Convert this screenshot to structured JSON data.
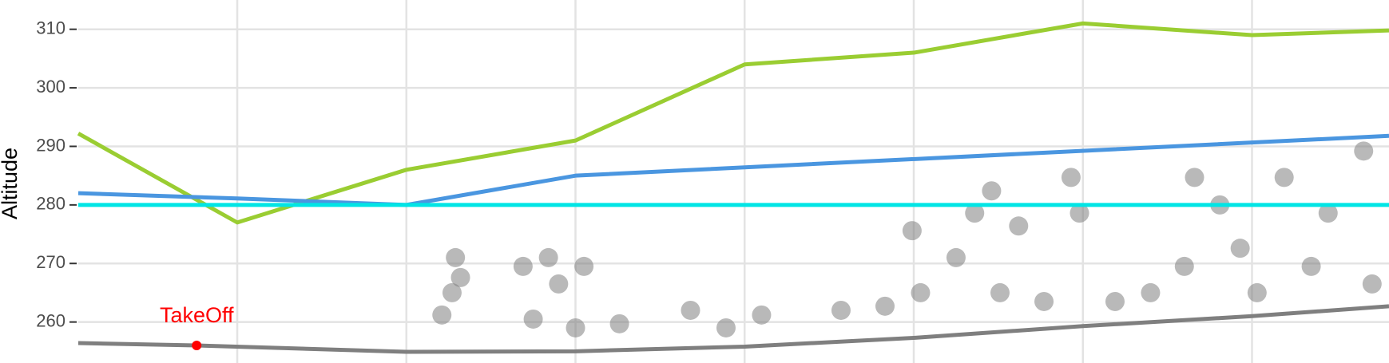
{
  "chart_data": {
    "type": "line",
    "y_label": "Altitude",
    "xlim": [
      0.06,
      7.81
    ],
    "xticks": [
      1,
      2,
      3,
      4,
      5,
      6,
      7
    ],
    "ylim": [
      253,
      315
    ],
    "yticks": [
      260,
      270,
      280,
      290,
      300,
      310
    ],
    "grid": true,
    "series": [
      {
        "color": "#9acd32",
        "x": [
          0.06,
          1,
          2,
          3,
          4,
          5,
          6,
          7,
          7.81
        ],
        "values": [
          292.2,
          277,
          286,
          291,
          304,
          306,
          311,
          309,
          309.8
        ]
      },
      {
        "color": "#4a96e0",
        "x": [
          0.06,
          1,
          2,
          3,
          7.81
        ],
        "values": [
          282,
          281.1,
          280,
          285,
          291.8
        ]
      },
      {
        "color": "#00e5e5",
        "x": [
          0.06,
          7.81
        ],
        "values": [
          280,
          280
        ]
      },
      {
        "color": "#7f7f7f",
        "x": [
          0.06,
          0.76,
          2,
          3,
          4,
          5,
          6,
          7,
          7.81
        ],
        "values": [
          256.4,
          256,
          254.9,
          255,
          255.8,
          257.3,
          259.3,
          261,
          262.7
        ]
      }
    ],
    "cloud": {
      "color": "#7f7f7f",
      "x": [
        2.29,
        2.27,
        2.21,
        2.32,
        2.69,
        2.84,
        2.9,
        3.05,
        2.75,
        3.0,
        3.26,
        3.68,
        4.1,
        3.89,
        4.57,
        4.83,
        5.04,
        5.25,
        4.99,
        5.36,
        5.46,
        5.62,
        5.51,
        5.77,
        5.93,
        5.98,
        6.19,
        6.66,
        6.81,
        6.93,
        6.6,
        6.4,
        7.19,
        7.45,
        7.66,
        7.35,
        7.71,
        7.03
      ],
      "values": [
        271,
        265,
        261.2,
        267.6,
        269.5,
        271,
        266.5,
        269.5,
        260.5,
        259,
        259.7,
        262,
        261.2,
        259,
        262,
        262.7,
        265,
        271,
        275.6,
        278.6,
        282.4,
        276.4,
        265,
        263.5,
        284.7,
        278.6,
        263.5,
        284.7,
        280,
        272.6,
        269.5,
        265,
        284.7,
        278.6,
        289.2,
        269.5,
        266.5,
        265
      ]
    },
    "annotation": {
      "text": "TakeOff",
      "color": "#ff0000",
      "x": 0.76,
      "y": 256
    }
  }
}
